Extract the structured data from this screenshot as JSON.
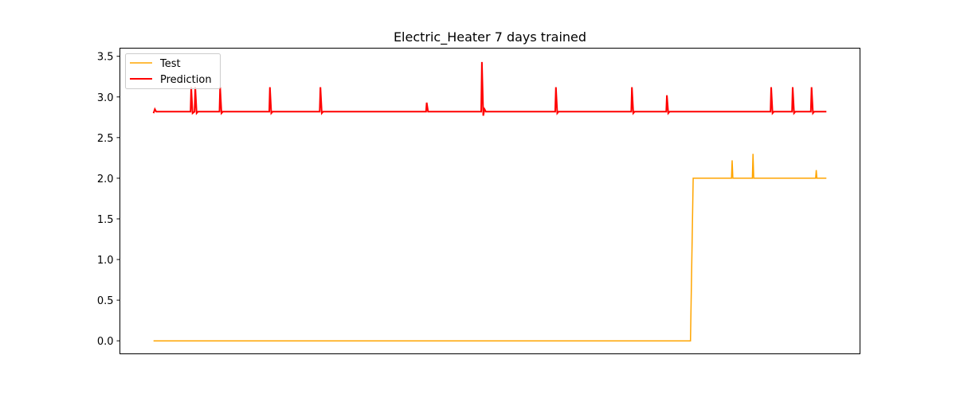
{
  "chart_data": {
    "type": "line",
    "title": "Electric_Heater 7 days trained",
    "xlabel": "",
    "ylabel": "",
    "x_ticks_shown": false,
    "ylim": [
      -0.16,
      3.6
    ],
    "xlim": [
      -0.05,
      1.05
    ],
    "yticks": [
      0.0,
      0.5,
      1.0,
      1.5,
      2.0,
      2.5,
      3.0,
      3.5
    ],
    "ytick_labels": [
      "0.0",
      "0.5",
      "1.0",
      "1.5",
      "2.0",
      "2.5",
      "3.0",
      "3.5"
    ],
    "grid": false,
    "legend_position": "top-left",
    "series": [
      {
        "name": "Test",
        "color": "#FFA500",
        "points": [
          [
            0.0,
            0.0
          ],
          [
            0.798,
            0.0
          ],
          [
            0.802,
            2.0
          ],
          [
            0.859,
            2.0
          ],
          [
            0.86,
            2.22
          ],
          [
            0.861,
            2.0
          ],
          [
            0.89,
            2.0
          ],
          [
            0.891,
            2.3
          ],
          [
            0.892,
            2.0
          ],
          [
            0.984,
            2.0
          ],
          [
            0.985,
            2.1
          ],
          [
            0.986,
            2.0
          ],
          [
            1.0,
            2.0
          ]
        ]
      },
      {
        "name": "Prediction",
        "color": "#FF0000",
        "points": [
          [
            0.0,
            2.8
          ],
          [
            0.002,
            2.85
          ],
          [
            0.004,
            2.82
          ],
          [
            0.055,
            2.82
          ],
          [
            0.056,
            3.12
          ],
          [
            0.058,
            2.8
          ],
          [
            0.061,
            2.82
          ],
          [
            0.062,
            3.12
          ],
          [
            0.064,
            2.8
          ],
          [
            0.066,
            2.82
          ],
          [
            0.098,
            2.82
          ],
          [
            0.099,
            3.12
          ],
          [
            0.101,
            2.8
          ],
          [
            0.103,
            2.82
          ],
          [
            0.172,
            2.82
          ],
          [
            0.173,
            3.12
          ],
          [
            0.175,
            2.8
          ],
          [
            0.177,
            2.82
          ],
          [
            0.247,
            2.82
          ],
          [
            0.248,
            3.12
          ],
          [
            0.25,
            2.8
          ],
          [
            0.252,
            2.82
          ],
          [
            0.405,
            2.82
          ],
          [
            0.406,
            2.93
          ],
          [
            0.408,
            2.82
          ],
          [
            0.487,
            2.82
          ],
          [
            0.488,
            3.43
          ],
          [
            0.49,
            2.77
          ],
          [
            0.492,
            2.85
          ],
          [
            0.494,
            2.82
          ],
          [
            0.597,
            2.82
          ],
          [
            0.598,
            3.12
          ],
          [
            0.6,
            2.8
          ],
          [
            0.602,
            2.82
          ],
          [
            0.71,
            2.82
          ],
          [
            0.711,
            3.12
          ],
          [
            0.713,
            2.8
          ],
          [
            0.715,
            2.82
          ],
          [
            0.762,
            2.82
          ],
          [
            0.763,
            3.02
          ],
          [
            0.765,
            2.8
          ],
          [
            0.767,
            2.82
          ],
          [
            0.917,
            2.82
          ],
          [
            0.918,
            3.12
          ],
          [
            0.92,
            2.8
          ],
          [
            0.922,
            2.82
          ],
          [
            0.949,
            2.82
          ],
          [
            0.95,
            3.12
          ],
          [
            0.952,
            2.8
          ],
          [
            0.954,
            2.82
          ],
          [
            0.977,
            2.82
          ],
          [
            0.978,
            3.12
          ],
          [
            0.98,
            2.8
          ],
          [
            0.982,
            2.82
          ],
          [
            1.0,
            2.82
          ]
        ]
      }
    ]
  }
}
